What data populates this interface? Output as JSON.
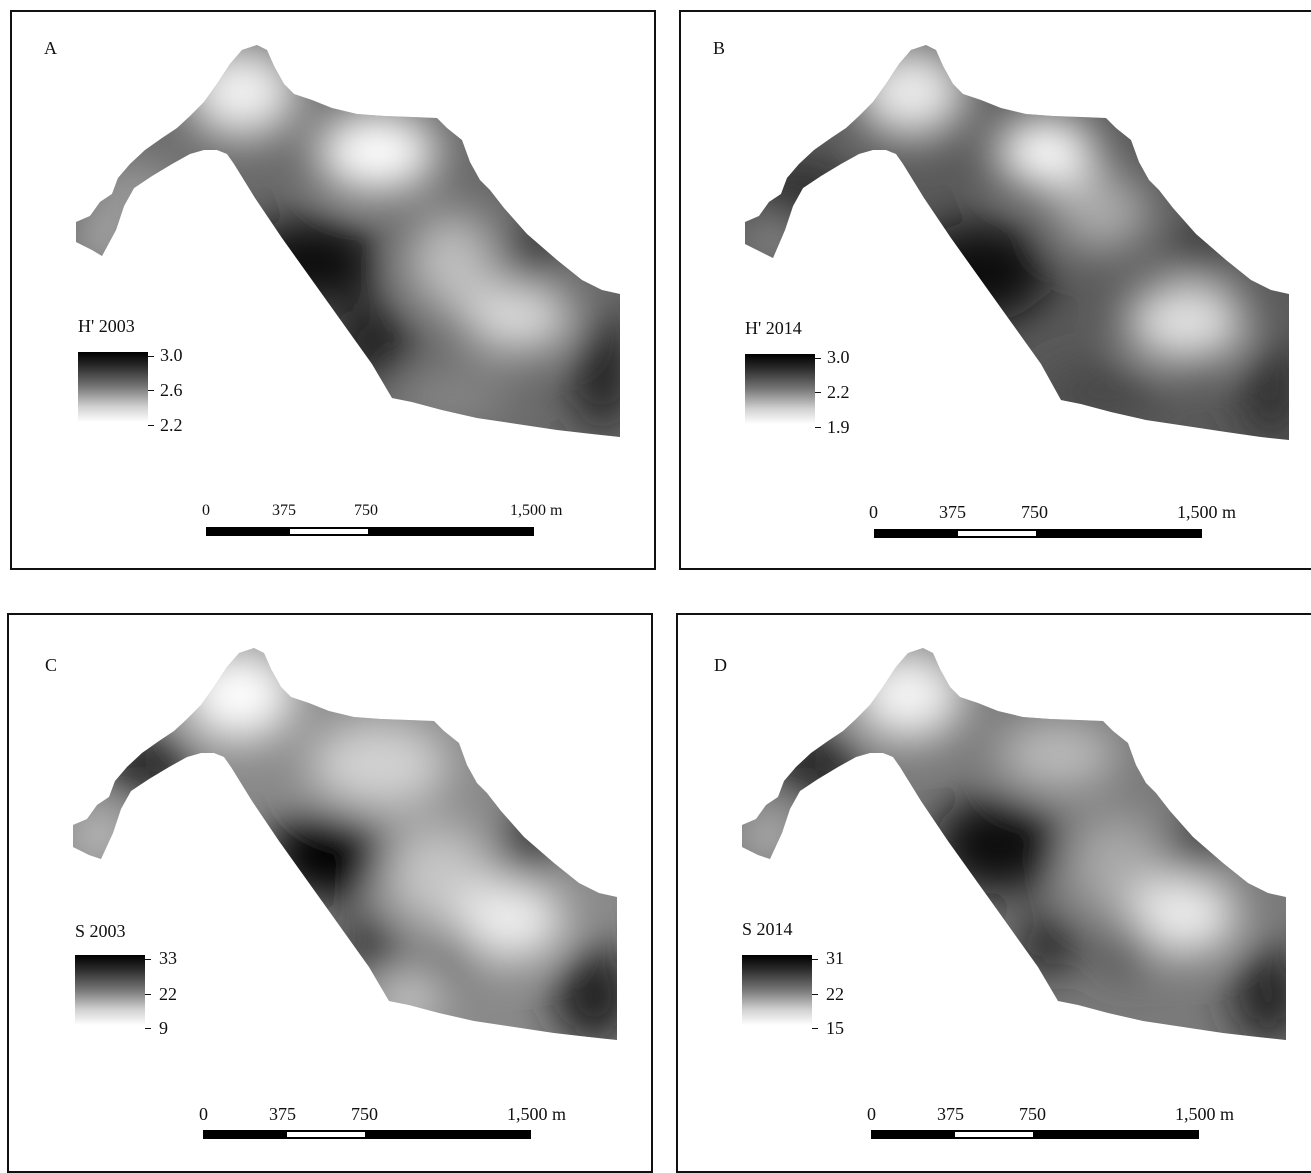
{
  "panels": {
    "a": {
      "letter": "A",
      "legend": {
        "title": "H' 2003",
        "high": "3.0",
        "mid": "2.6",
        "low": "2.2"
      },
      "scale": {
        "l0": "0",
        "l1": "375",
        "l2": "750",
        "l3": "1,500 m"
      }
    },
    "b": {
      "letter": "B",
      "legend": {
        "title": "H' 2014",
        "high": "3.0",
        "mid": "2.2",
        "low": "1.9"
      },
      "scale": {
        "l0": "0",
        "l1": "375",
        "l2": "750",
        "l3": "1,500 m"
      }
    },
    "c": {
      "letter": "C",
      "legend": {
        "title": "S 2003",
        "high": "33",
        "mid": "22",
        "low": "9"
      },
      "scale": {
        "l0": "0",
        "l1": "375",
        "l2": "750",
        "l3": "1,500 m"
      }
    },
    "d": {
      "letter": "D",
      "legend": {
        "title": "S 2014",
        "high": "31",
        "mid": "22",
        "low": "15"
      },
      "scale": {
        "l0": "0",
        "l1": "375",
        "l2": "750",
        "l3": "1,500 m"
      }
    }
  }
}
